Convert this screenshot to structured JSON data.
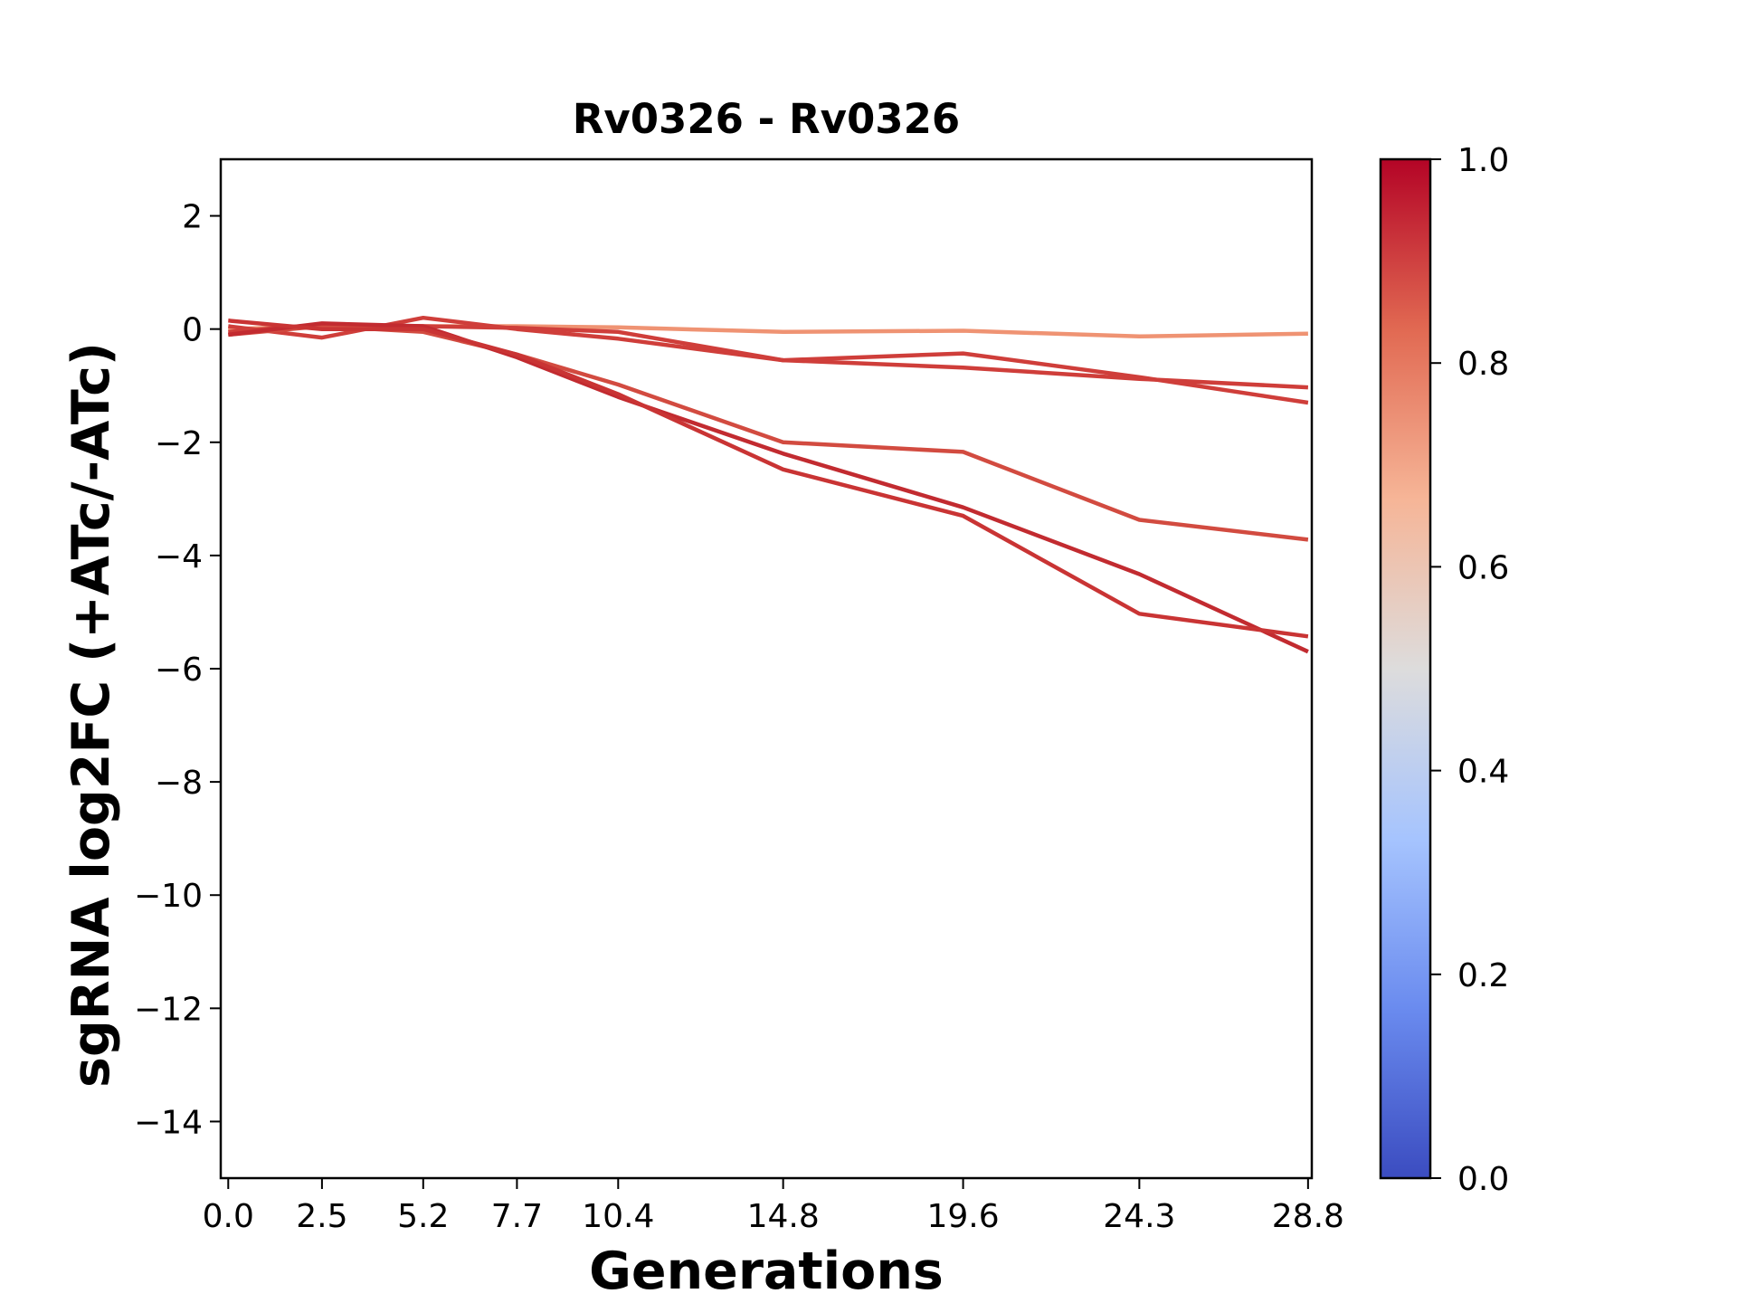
{
  "chart_data": {
    "type": "line",
    "title": "Rv0326 - Rv0326",
    "xlabel": "Generations",
    "ylabel": "sgRNA log2FC (+ATc/-ATc)",
    "x": [
      0.0,
      2.5,
      5.2,
      7.7,
      10.4,
      14.8,
      19.6,
      24.3,
      28.8
    ],
    "x_tick_labels": [
      "0.0",
      "2.5",
      "5.2",
      "7.7",
      "10.4",
      "14.8",
      "19.6",
      "24.3",
      "28.8"
    ],
    "xlim": [
      -0.2,
      28.9
    ],
    "ylim": [
      -15,
      3
    ],
    "y_ticks": [
      2,
      0,
      -2,
      -4,
      -6,
      -8,
      -10,
      -12,
      -14
    ],
    "y_tick_labels": [
      "2",
      "0",
      "−2",
      "−4",
      "−6",
      "−8",
      "−10",
      "−12",
      "−14"
    ],
    "series": [
      {
        "color_value": 0.72,
        "color": "#ef9373",
        "values": [
          0.0,
          0.05,
          0.05,
          0.05,
          0.03,
          -0.05,
          -0.03,
          -0.13,
          -0.08
        ]
      },
      {
        "color_value": 0.9,
        "color": "#cf3e3a",
        "values": [
          0.05,
          -0.15,
          0.2,
          0.0,
          -0.17,
          -0.55,
          -0.43,
          -0.85,
          -1.3
        ]
      },
      {
        "color_value": 0.9,
        "color": "#cf3e3a",
        "values": [
          -0.05,
          0.08,
          0.05,
          0.02,
          -0.05,
          -0.55,
          -0.68,
          -0.88,
          -1.03
        ]
      },
      {
        "color_value": 0.88,
        "color": "#d24b40",
        "values": [
          -0.1,
          0.05,
          -0.05,
          -0.45,
          -0.98,
          -2.0,
          -2.17,
          -3.37,
          -3.72
        ]
      },
      {
        "color_value": 0.95,
        "color": "#c22b30",
        "values": [
          -0.1,
          0.1,
          0.05,
          -0.5,
          -1.2,
          -2.2,
          -3.15,
          -4.33,
          -5.7
        ]
      },
      {
        "color_value": 0.92,
        "color": "#c93434",
        "values": [
          0.15,
          0.0,
          0.0,
          -0.45,
          -1.15,
          -2.48,
          -3.3,
          -5.03,
          -5.43
        ]
      }
    ],
    "colorbar": {
      "range": [
        0.0,
        1.0
      ],
      "ticks": [
        "0.0",
        "0.2",
        "0.4",
        "0.6",
        "0.8",
        "1.0"
      ],
      "colormap": "coolwarm",
      "stops": [
        "#3b4cc0",
        "#6a8bef",
        "#a6c4fe",
        "#dddcdc",
        "#f6b597",
        "#e16952",
        "#b40426"
      ]
    },
    "grid": false
  }
}
